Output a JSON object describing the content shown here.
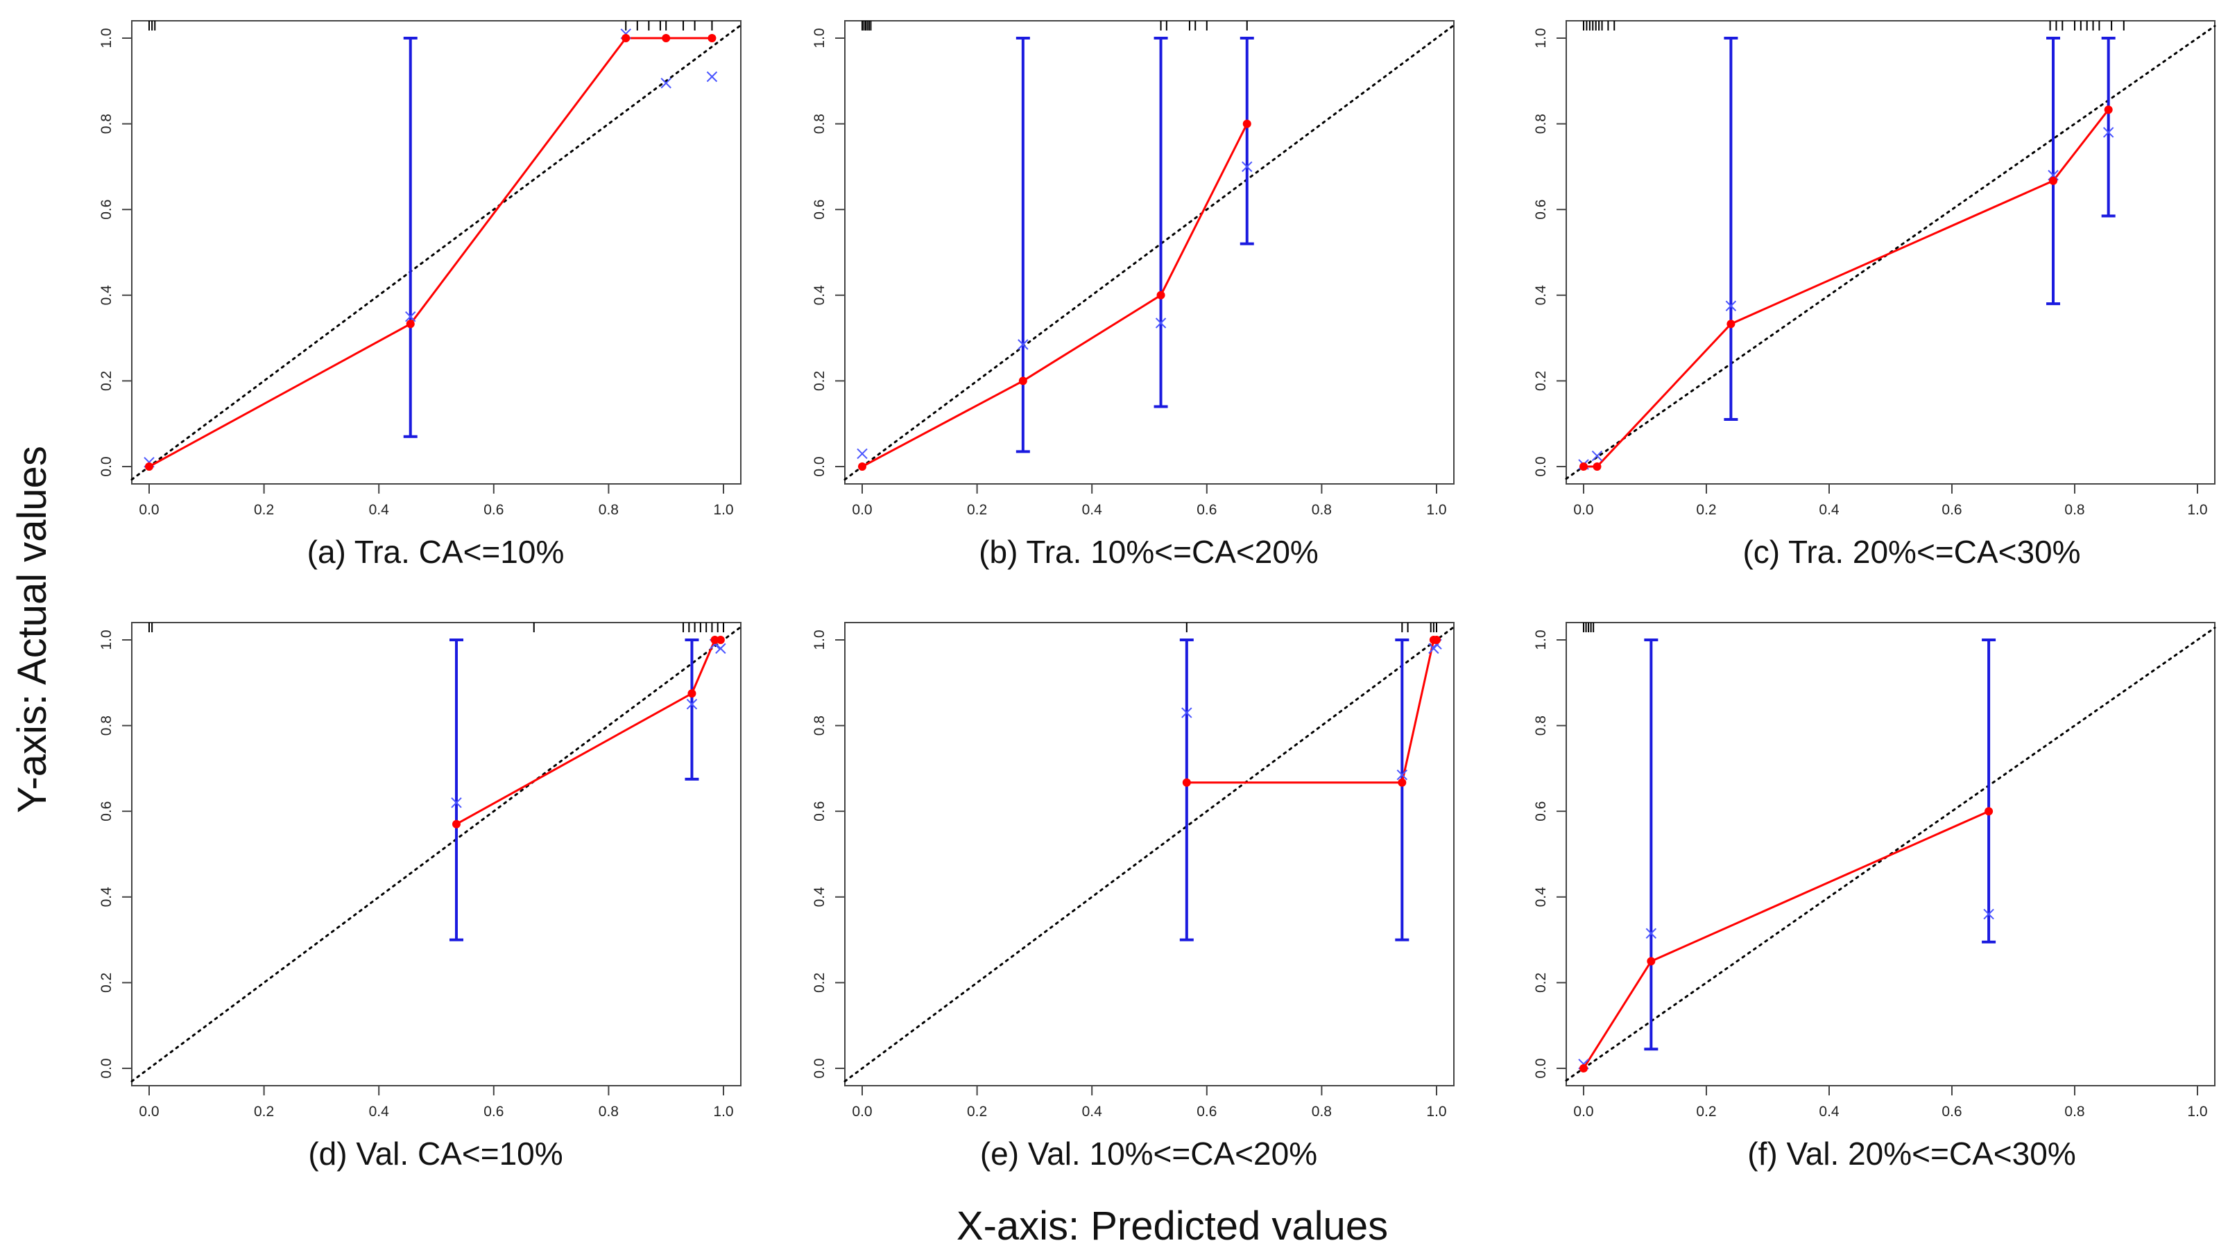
{
  "figure": {
    "y_axis_title": "Y-axis: Actual values",
    "x_axis_title": "X-axis: Predicted values"
  },
  "colors": {
    "calibration_line": "#ff0000",
    "error_bars": "#1a1adf",
    "cross_markers": "#4a55ff",
    "reference_line": "#000000",
    "rug": "#000000"
  },
  "chart_data": [
    {
      "id": "a",
      "type": "line",
      "title": "(a) Tra. CA<=10%",
      "xlabel": "Predicted values",
      "ylabel": "Actual values",
      "xlim": [
        0,
        1
      ],
      "ylim": [
        0,
        1
      ],
      "x_ticks": [
        "0.0",
        "0.2",
        "0.4",
        "0.6",
        "0.8",
        "1.0"
      ],
      "y_ticks": [
        "0.0",
        "0.2",
        "0.4",
        "0.6",
        "0.8",
        "1.0"
      ],
      "observed": {
        "x": [
          0.0,
          0.455,
          0.83,
          0.9,
          0.98
        ],
        "y": [
          0.0,
          0.333,
          1.0,
          1.0,
          1.0
        ]
      },
      "error_bars": [
        {
          "x": 0.455,
          "lower": 0.07,
          "upper": 1.0
        }
      ],
      "bias_corrected": {
        "x": [
          0.0,
          0.455,
          0.83,
          0.9,
          0.98
        ],
        "y": [
          0.01,
          0.35,
          1.01,
          0.895,
          0.91
        ]
      },
      "rug": [
        0.0,
        0.005,
        0.01,
        0.83,
        0.85,
        0.87,
        0.89,
        0.9,
        0.93,
        0.95,
        0.98
      ]
    },
    {
      "id": "b",
      "type": "line",
      "title": "(b) Tra. 10%<=CA<20%",
      "xlabel": "Predicted values",
      "ylabel": "Actual values",
      "xlim": [
        0,
        1
      ],
      "ylim": [
        0,
        1
      ],
      "x_ticks": [
        "0.0",
        "0.2",
        "0.4",
        "0.6",
        "0.8",
        "1.0"
      ],
      "y_ticks": [
        "0.0",
        "0.2",
        "0.4",
        "0.6",
        "0.8",
        "1.0"
      ],
      "observed": {
        "x": [
          0.0,
          0.28,
          0.52,
          0.67
        ],
        "y": [
          0.0,
          0.2,
          0.4,
          0.8
        ]
      },
      "error_bars": [
        {
          "x": 0.28,
          "lower": 0.035,
          "upper": 1.0
        },
        {
          "x": 0.52,
          "lower": 0.14,
          "upper": 1.0
        },
        {
          "x": 0.67,
          "lower": 0.52,
          "upper": 1.0
        }
      ],
      "bias_corrected": {
        "x": [
          0.0,
          0.28,
          0.52,
          0.67
        ],
        "y": [
          0.03,
          0.285,
          0.335,
          0.7
        ]
      },
      "rug": [
        0.0,
        0.003,
        0.006,
        0.009,
        0.012,
        0.015,
        0.52,
        0.53,
        0.57,
        0.58,
        0.6,
        0.67
      ]
    },
    {
      "id": "c",
      "type": "line",
      "title": "(c) Tra. 20%<=CA<30%",
      "xlabel": "Predicted values",
      "ylabel": "Actual values",
      "xlim": [
        0,
        1
      ],
      "ylim": [
        0,
        1
      ],
      "x_ticks": [
        "0.0",
        "0.2",
        "0.4",
        "0.6",
        "0.8",
        "1.0"
      ],
      "y_ticks": [
        "0.0",
        "0.2",
        "0.4",
        "0.6",
        "0.8",
        "1.0"
      ],
      "observed": {
        "x": [
          0.0,
          0.022,
          0.24,
          0.765,
          0.855
        ],
        "y": [
          0.0,
          0.0,
          0.333,
          0.667,
          0.833
        ]
      },
      "error_bars": [
        {
          "x": 0.24,
          "lower": 0.11,
          "upper": 1.0
        },
        {
          "x": 0.765,
          "lower": 0.38,
          "upper": 1.0
        },
        {
          "x": 0.855,
          "lower": 0.585,
          "upper": 1.0
        }
      ],
      "bias_corrected": {
        "x": [
          0.0,
          0.022,
          0.24,
          0.765,
          0.855
        ],
        "y": [
          0.005,
          0.025,
          0.375,
          0.68,
          0.78
        ]
      },
      "rug": [
        0.0,
        0.005,
        0.01,
        0.015,
        0.02,
        0.025,
        0.03,
        0.04,
        0.05,
        0.76,
        0.77,
        0.78,
        0.8,
        0.81,
        0.82,
        0.83,
        0.84,
        0.86,
        0.88
      ]
    },
    {
      "id": "d",
      "type": "line",
      "title": "(d) Val. CA<=10%",
      "xlabel": "Predicted values",
      "ylabel": "Actual values",
      "xlim": [
        0,
        1
      ],
      "ylim": [
        0,
        1
      ],
      "x_ticks": [
        "0.0",
        "0.2",
        "0.4",
        "0.6",
        "0.8",
        "1.0"
      ],
      "y_ticks": [
        "0.0",
        "0.2",
        "0.4",
        "0.6",
        "0.8",
        "1.0"
      ],
      "observed": {
        "x": [
          0.535,
          0.945,
          0.985,
          0.995
        ],
        "y": [
          0.57,
          0.875,
          1.0,
          1.0
        ]
      },
      "error_bars": [
        {
          "x": 0.535,
          "lower": 0.3,
          "upper": 1.0
        },
        {
          "x": 0.945,
          "lower": 0.675,
          "upper": 1.0
        }
      ],
      "bias_corrected": {
        "x": [
          0.535,
          0.945,
          0.985,
          0.995
        ],
        "y": [
          0.62,
          0.85,
          0.99,
          0.98
        ]
      },
      "rug": [
        0.0,
        0.005,
        0.67,
        0.93,
        0.94,
        0.95,
        0.96,
        0.97,
        0.98,
        0.99,
        1.0
      ]
    },
    {
      "id": "e",
      "type": "line",
      "title": "(e) Val. 10%<=CA<20%",
      "xlabel": "Predicted values",
      "ylabel": "Actual values",
      "xlim": [
        0,
        1
      ],
      "ylim": [
        0,
        1
      ],
      "x_ticks": [
        "0.0",
        "0.2",
        "0.4",
        "0.6",
        "0.8",
        "1.0"
      ],
      "y_ticks": [
        "0.0",
        "0.2",
        "0.4",
        "0.6",
        "0.8",
        "1.0"
      ],
      "observed": {
        "x": [
          0.565,
          0.94,
          0.995,
          1.0
        ],
        "y": [
          0.667,
          0.667,
          1.0,
          1.0
        ]
      },
      "error_bars": [
        {
          "x": 0.565,
          "lower": 0.3,
          "upper": 1.0
        },
        {
          "x": 0.94,
          "lower": 0.3,
          "upper": 1.0
        }
      ],
      "bias_corrected": {
        "x": [
          0.565,
          0.94,
          0.995,
          1.0
        ],
        "y": [
          0.83,
          0.685,
          0.98,
          0.99
        ]
      },
      "rug": [
        0.565,
        0.94,
        0.95,
        0.99,
        0.995,
        1.0
      ]
    },
    {
      "id": "f",
      "type": "line",
      "title": "(f) Val. 20%<=CA<30%",
      "xlabel": "Predicted values",
      "ylabel": "Actual values",
      "xlim": [
        0,
        1
      ],
      "ylim": [
        0,
        1
      ],
      "x_ticks": [
        "0.0",
        "0.2",
        "0.4",
        "0.6",
        "0.8",
        "1.0"
      ],
      "y_ticks": [
        "0.0",
        "0.2",
        "0.4",
        "0.6",
        "0.8",
        "1.0"
      ],
      "observed": {
        "x": [
          0.0,
          0.11,
          0.66
        ],
        "y": [
          0.0,
          0.25,
          0.6
        ]
      },
      "error_bars": [
        {
          "x": 0.11,
          "lower": 0.045,
          "upper": 1.0
        },
        {
          "x": 0.66,
          "lower": 0.295,
          "upper": 1.0
        }
      ],
      "bias_corrected": {
        "x": [
          0.0,
          0.11,
          0.66
        ],
        "y": [
          0.01,
          0.315,
          0.36
        ]
      },
      "rug": [
        0.0,
        0.004,
        0.008,
        0.012,
        0.016
      ]
    }
  ]
}
